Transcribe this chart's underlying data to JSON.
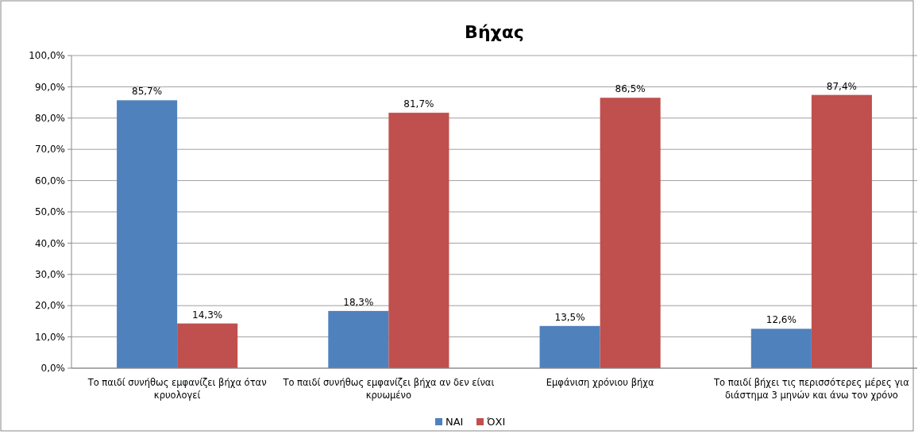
{
  "chart_data": {
    "type": "bar",
    "title": "Βήχας",
    "categories": [
      "Το παιδί συνήθως εμφανίζει βήχα όταν κρυολογεί",
      "Το παιδί συνήθως εμφανίζει βήχα αν δεν είναι κρυωμένο",
      "Εμφάνιση χρόνιου  βήχα",
      "Το παιδί βήχει τις περισσότερες μέρες για διάστημα 3 μηνών και άνω τον χρόνο"
    ],
    "series": [
      {
        "name": "ΝΑΙ",
        "color": "#4f81bd",
        "values": [
          85.7,
          18.3,
          13.5,
          12.6
        ],
        "value_labels": [
          "85,7%",
          "18,3%",
          "13,5%",
          "12,6%"
        ]
      },
      {
        "name": "ΌΧΙ",
        "color": "#c0504d",
        "values": [
          14.3,
          81.7,
          86.5,
          87.4
        ],
        "value_labels": [
          "14,3%",
          "81,7%",
          "86,5%",
          "87,4%"
        ]
      }
    ],
    "ylim": [
      0,
      100
    ],
    "yticks": [
      {
        "value": 0,
        "label": "0,0%"
      },
      {
        "value": 10,
        "label": "10,0%"
      },
      {
        "value": 20,
        "label": "20,0%"
      },
      {
        "value": 30,
        "label": "30,0%"
      },
      {
        "value": 40,
        "label": "40,0%"
      },
      {
        "value": 50,
        "label": "50,0%"
      },
      {
        "value": 60,
        "label": "60,0%"
      },
      {
        "value": 70,
        "label": "70,0%"
      },
      {
        "value": 80,
        "label": "80,0%"
      },
      {
        "value": 90,
        "label": "90,0%"
      },
      {
        "value": 100,
        "label": "100,0%"
      }
    ],
    "grid": "y",
    "legend": "bottom"
  }
}
